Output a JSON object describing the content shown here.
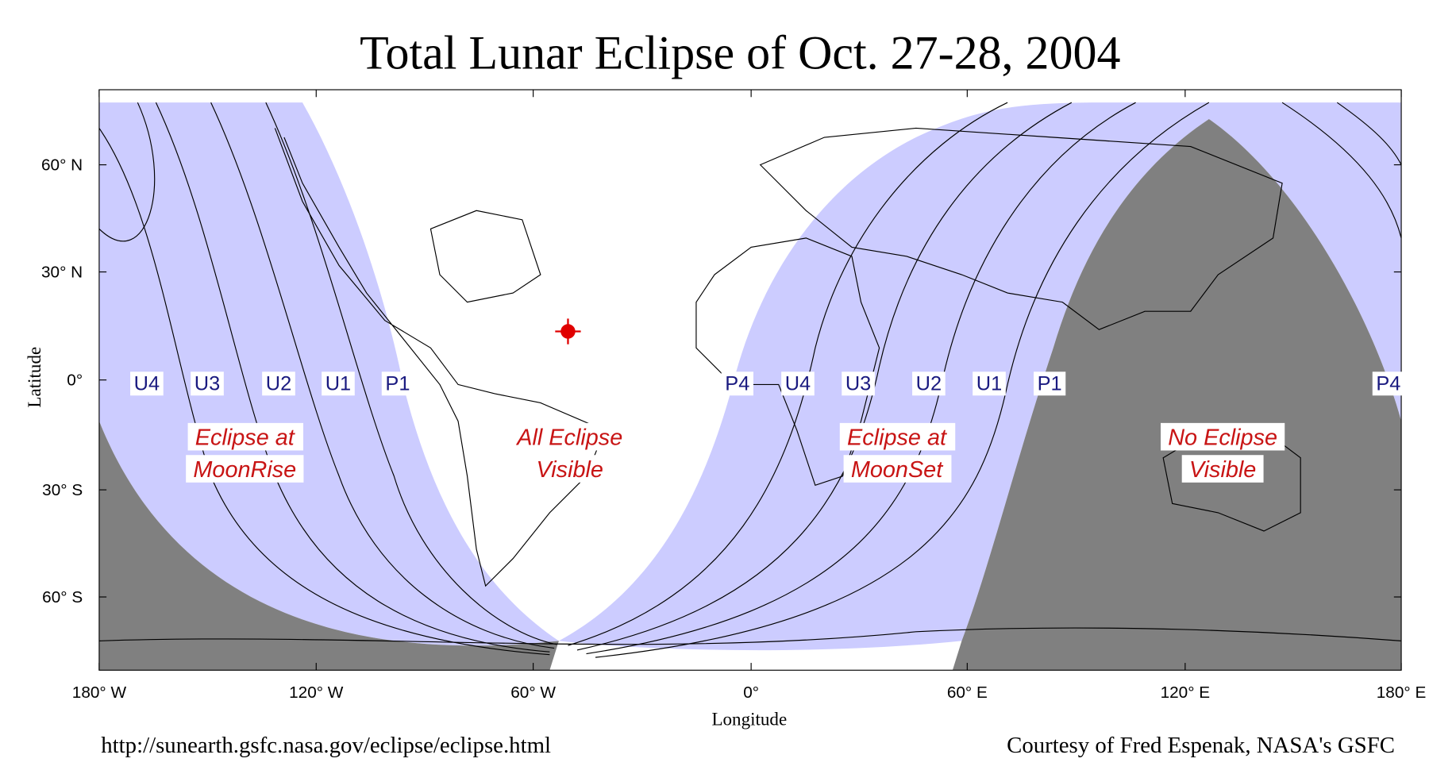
{
  "title": "Total Lunar Eclipse of Oct. 27-28, 2004",
  "y_axis": {
    "label": "Latitude",
    "ticks": [
      "60° N",
      "30° N",
      "0°",
      "30° S",
      "60° S"
    ]
  },
  "x_axis": {
    "label": "Longitude",
    "ticks": [
      "180° W",
      "120° W",
      "60° W",
      "0°",
      "60° E",
      "120° E",
      "180° E"
    ]
  },
  "contacts": {
    "west": [
      "U4",
      "U3",
      "U2",
      "U1",
      "P1"
    ],
    "east": [
      "P4",
      "U4",
      "U3",
      "U2",
      "U1",
      "P1",
      "P4"
    ]
  },
  "regions": [
    {
      "lines": [
        "Eclipse at",
        "MoonRise"
      ]
    },
    {
      "lines": [
        "All Eclipse",
        "Visible"
      ]
    },
    {
      "lines": [
        "Eclipse at",
        "MoonSet"
      ]
    },
    {
      "lines": [
        "No Eclipse",
        "Visible"
      ]
    }
  ],
  "footer": {
    "left": "http://sunearth.gsfc.nasa.gov/eclipse/eclipse.html",
    "right": "Courtesy of Fred Espenak, NASA's GSFC"
  }
}
